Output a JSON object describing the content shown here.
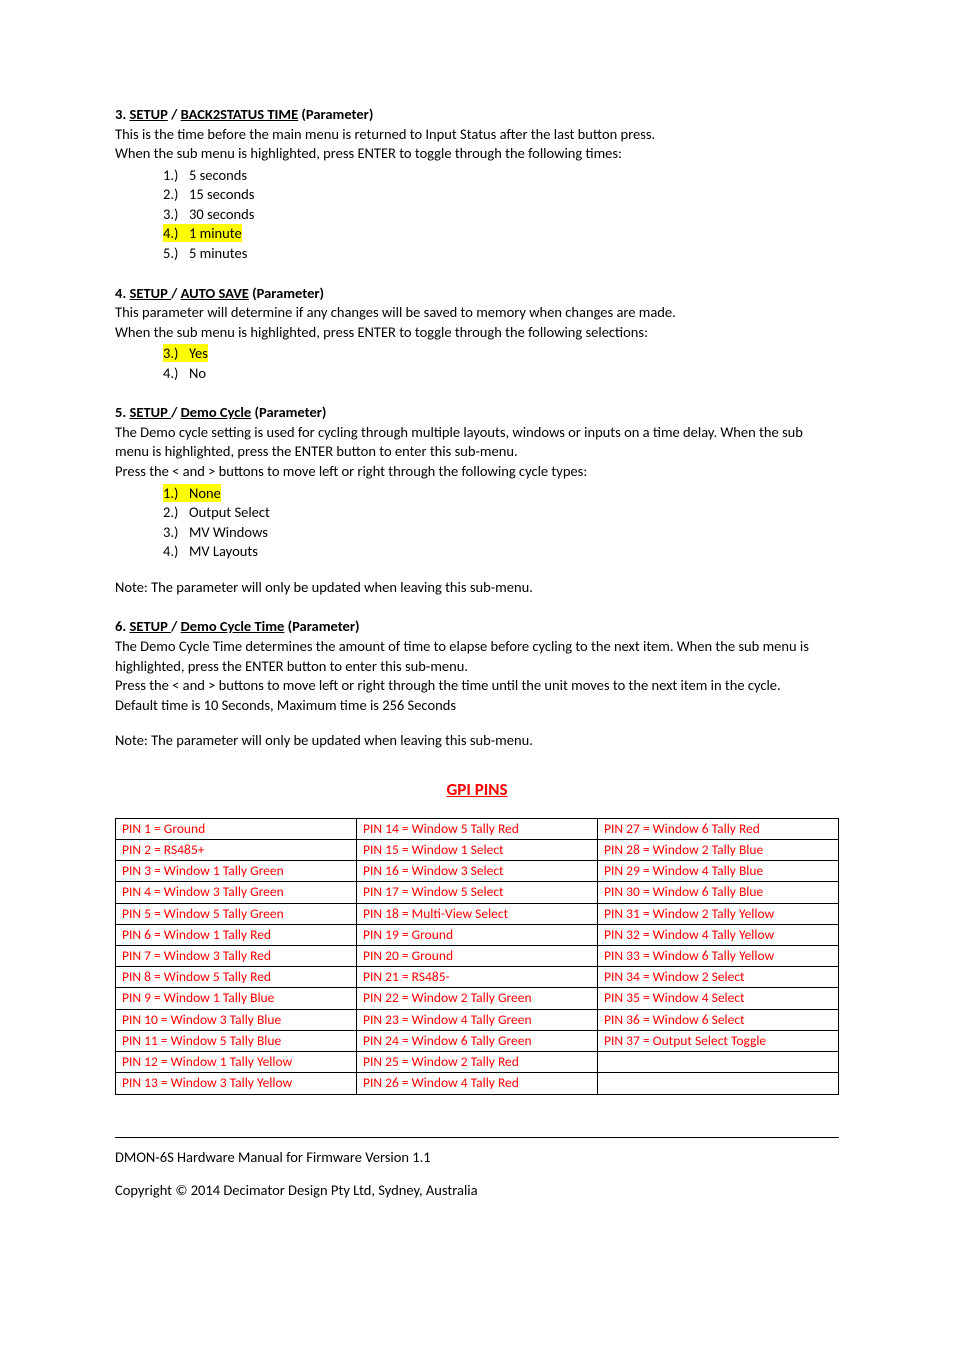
{
  "section3": {
    "num": "3.",
    "path1": "SETUP",
    "sep": " / ",
    "path2": "BACK2STATUS TIME",
    "suffix": " (Parameter)",
    "para1": "This is the time before the main menu is returned to Input Status after the last button press.",
    "para2": "When the sub menu is highlighted, press ENTER to toggle through the following times:",
    "items": [
      {
        "num": "1.)",
        "text": "5 seconds",
        "hl": false
      },
      {
        "num": "2.)",
        "text": "15 seconds",
        "hl": false
      },
      {
        "num": "3.)",
        "text": "30 seconds",
        "hl": false
      },
      {
        "num": "4.)",
        "text": "1 minute",
        "hl": true
      },
      {
        "num": "5.)",
        "text": "5 minutes",
        "hl": false
      }
    ]
  },
  "section4": {
    "num": "4.",
    "path1": "SETUP ",
    "sep": "/ ",
    "path2": "AUTO SAVE",
    "suffix": " (Parameter)",
    "para1": "This parameter will determine if any changes will be saved to memory when changes are made.",
    "para2": "When the sub menu is highlighted, press ENTER to toggle through the following selections:",
    "items": [
      {
        "num": "3.)",
        "text": "Yes",
        "hl": true
      },
      {
        "num": "4.)",
        "text": "No",
        "hl": false
      }
    ]
  },
  "section5": {
    "num": "5.",
    "path1": "SETUP ",
    "sep": "/ ",
    "path2": "Demo Cycle",
    "suffix": " (Parameter)",
    "para1": "The Demo cycle setting is used for cycling through multiple layouts, windows or inputs on a time delay. When the sub menu is highlighted, press the ENTER button to enter this sub-menu.",
    "para2": "Press the < and > buttons to move left or right through the following cycle types:",
    "items": [
      {
        "num": "1.)",
        "text": "None",
        "hl": true
      },
      {
        "num": "2.)",
        "text": "Output Select",
        "hl": false
      },
      {
        "num": "3.)",
        "text": "MV Windows",
        "hl": false
      },
      {
        "num": "4.)",
        "text": "MV Layouts",
        "hl": false
      }
    ],
    "note": "Note: The parameter will only be updated when leaving this sub-menu."
  },
  "section6": {
    "num": "6.",
    "path1": "SETUP ",
    "sep": "/ ",
    "path2": "Demo Cycle Time",
    "suffix": " (Parameter)",
    "para1": "The Demo Cycle Time determines the amount of time to elapse before cycling to the next item.  When the sub menu is highlighted, press the ENTER button to enter this sub-menu.",
    "para2": "Press the < and > buttons to move left or right through the time until the unit moves to the next item in the cycle.",
    "para3": "Default time is 10 Seconds, Maximum time is 256 Seconds",
    "note": "Note: The parameter will only be updated when leaving this sub-menu."
  },
  "gpi": {
    "title": "GPI PINS",
    "rows": [
      [
        "PIN   1 = Ground",
        "PIN 14 = Window 5 Tally Red",
        "PIN 27 = Window 6 Tally Red"
      ],
      [
        "PIN   2 = RS485+",
        "PIN 15 = Window 1 Select",
        "PIN 28 = Window 2 Tally Blue"
      ],
      [
        "PIN   3 = Window 1 Tally Green",
        "PIN 16 = Window 3 Select",
        "PIN 29 = Window 4 Tally Blue"
      ],
      [
        "PIN   4 = Window 3 Tally Green",
        "PIN 17 = Window 5 Select",
        "PIN 30 = Window 6 Tally Blue"
      ],
      [
        "PIN   5 = Window 5 Tally Green",
        "PIN 18 = Multi-View Select",
        "PIN 31 = Window 2 Tally Yellow"
      ],
      [
        "PIN   6 = Window 1 Tally Red",
        "PIN 19 = Ground",
        "PIN 32 = Window 4 Tally Yellow"
      ],
      [
        "PIN   7 = Window 3 Tally Red",
        "PIN 20 = Ground",
        "PIN 33 = Window 6 Tally Yellow"
      ],
      [
        "PIN   8 = Window 5 Tally Red",
        "PIN 21 = RS485-",
        "PIN 34 = Window 2 Select"
      ],
      [
        "PIN   9 = Window 1 Tally Blue",
        "PIN 22 = Window 2 Tally Green",
        "PIN 35 = Window 4 Select"
      ],
      [
        "PIN 10 = Window 3 Tally Blue",
        "PIN 23 = Window 4 Tally Green",
        "PIN 36 = Window 6 Select"
      ],
      [
        "PIN 11 = Window 5 Tally Blue",
        "PIN 24 = Window 6 Tally Green",
        "PIN 37 = Output Select Toggle"
      ],
      [
        "PIN 12 = Window 1 Tally Yellow",
        "PIN 25 = Window 2 Tally Red",
        ""
      ],
      [
        "PIN 13 = Window 3 Tally Yellow",
        "PIN 26 = Window 4 Tally Red",
        ""
      ]
    ]
  },
  "footer": {
    "line1": "DMON-6S Hardware Manual for Firmware Version 1.1",
    "line2": "Copyright © 2014 Decimator Design Pty Ltd, Sydney, Australia"
  },
  "colors": {
    "text": "#000000",
    "highlight": "#ffff00",
    "red": "#ff0000",
    "border": "#000000",
    "background": "#ffffff"
  },
  "typography": {
    "body_fontsize_pt": 11,
    "gpi_title_fontsize_pt": 13,
    "font_family": "Calibri"
  }
}
